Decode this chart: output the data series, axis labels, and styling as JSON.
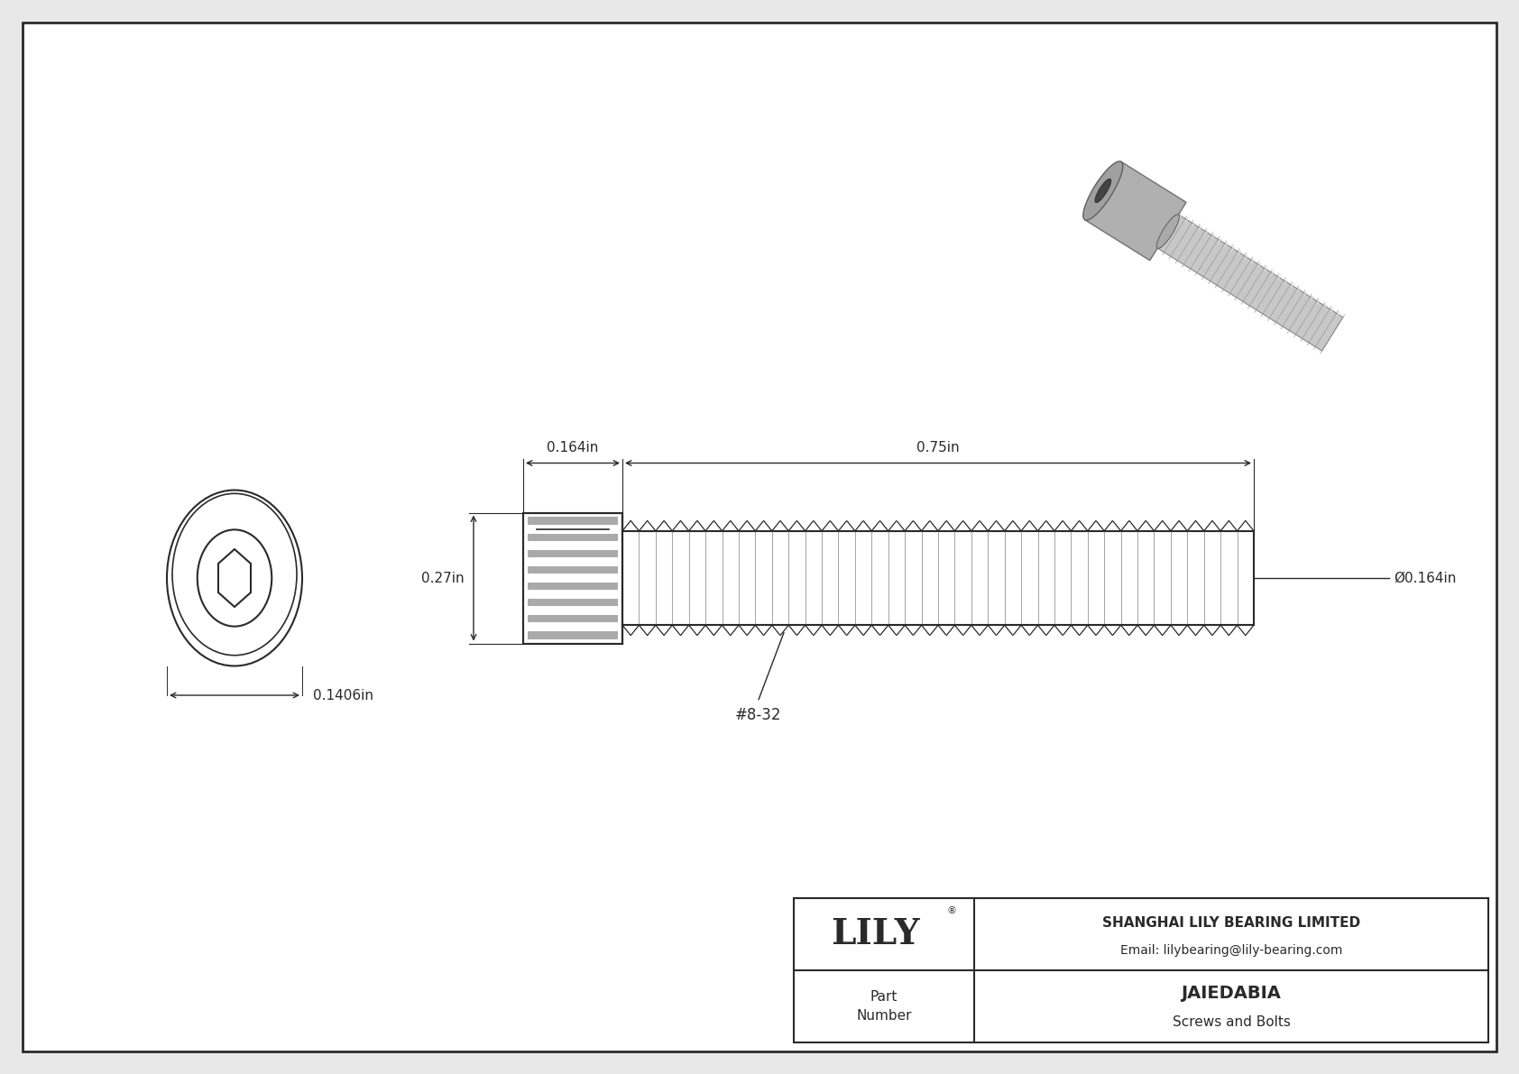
{
  "background_color": "#ffffff",
  "border_color": "#2a2a2a",
  "line_color": "#2a2a2a",
  "title_company": "SHANGHAI LILY BEARING LIMITED",
  "title_email": "Email: lilybearing@lily-bearing.com",
  "part_number": "JAIEDABIA",
  "part_category": "Screws and Bolts",
  "part_label": "Part\nNumber",
  "logo_text": "LILY",
  "logo_reg": "®",
  "dim_head_width": "0.164in",
  "dim_shaft_length": "0.75in",
  "dim_head_height": "0.27in",
  "dim_diameter": "Ø0.164in",
  "dim_thread": "#8-32",
  "dim_front_diameter": "0.1406in",
  "page_bg": "#e8e8e8"
}
